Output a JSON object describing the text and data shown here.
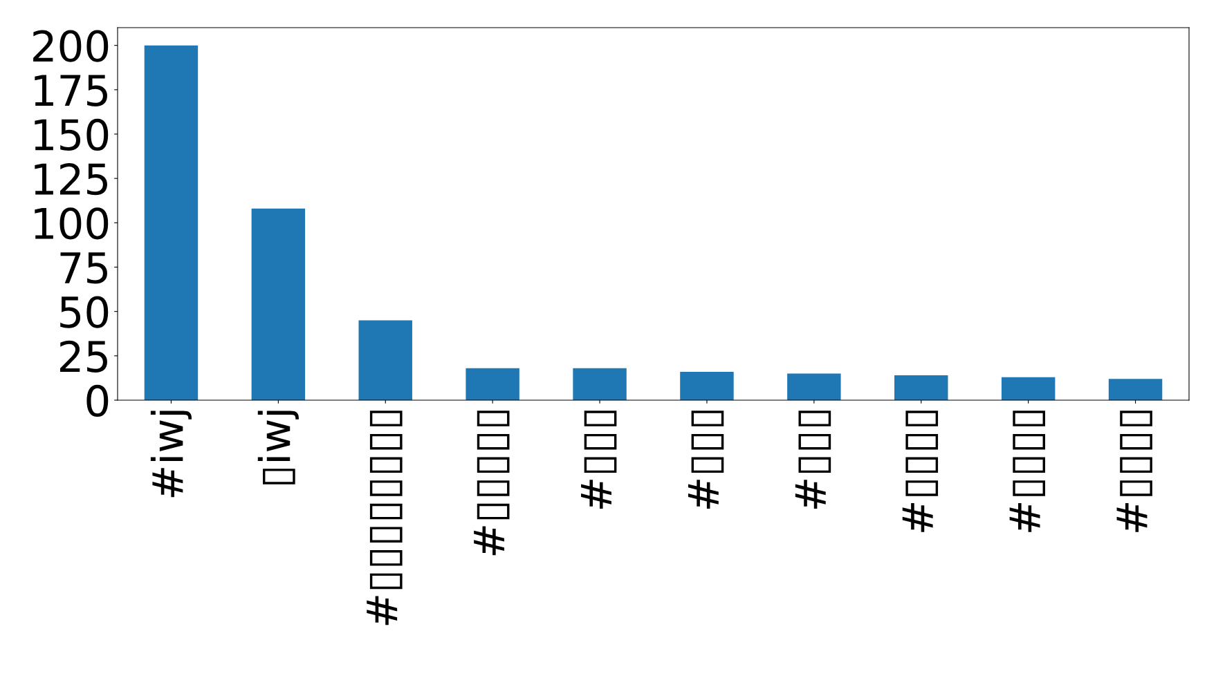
{
  "chart_data": {
    "type": "bar",
    "categories": [
      "#iwj",
      "▯iwj",
      "#▯▯▯▯▯▯▯▯",
      "#▯▯▯▯▯",
      "#▯▯▯",
      "#▯▯▯",
      "#▯▯▯",
      "#▯▯▯▯",
      "#▯▯▯▯",
      "#▯▯▯▯"
    ],
    "values": [
      200,
      108,
      45,
      18,
      18,
      16,
      15,
      14,
      13,
      12
    ],
    "color": "#1f77b4",
    "ylim": [
      0,
      210
    ],
    "yticks": [
      0,
      25,
      50,
      75,
      100,
      125,
      150,
      175,
      200
    ],
    "grid": false,
    "legend": false
  }
}
